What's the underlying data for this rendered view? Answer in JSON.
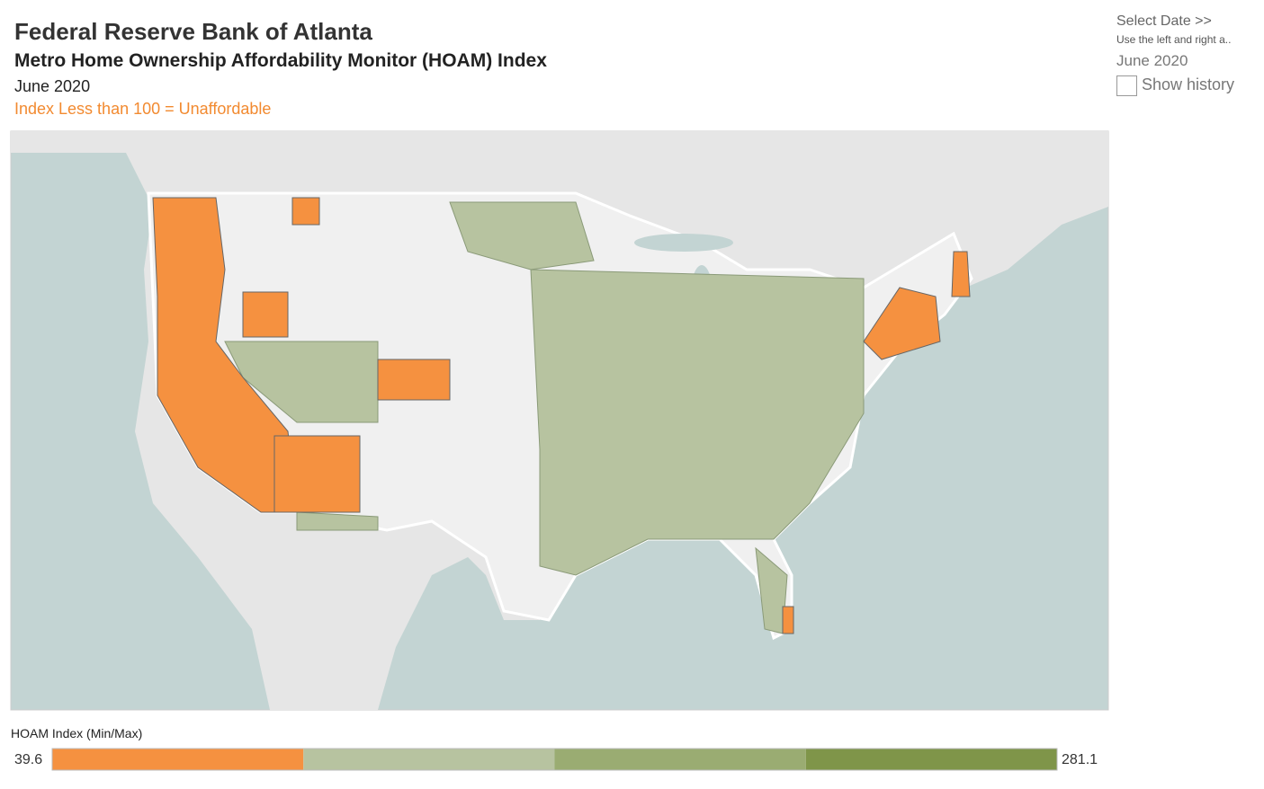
{
  "header": {
    "title": "Federal Reserve Bank of Atlanta",
    "subtitle": "Metro Home Ownership Affordability Monitor (HOAM) Index",
    "date": "June 2020",
    "note": "Index Less than 100 = Unaffordable"
  },
  "controls": {
    "select_date": "Select Date >>",
    "hint": "Use the left and right a..",
    "date_value": "June 2020",
    "show_history": "Show history"
  },
  "legend": {
    "title": "HOAM Index (Min/Max)",
    "min": 39.6,
    "max": 281.1,
    "colors": [
      "#f59140",
      "#b7c3a0",
      "#9aac72",
      "#7f9549"
    ]
  }
}
